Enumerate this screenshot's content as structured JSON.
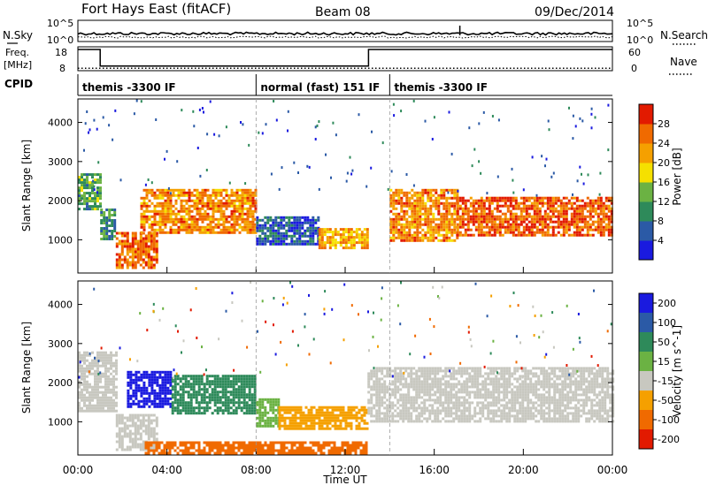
{
  "header": {
    "station": "Fort Hays East (fitACF)",
    "beam": "Beam 08",
    "date": "09/Dec/2014"
  },
  "nsky_panel": {
    "left_label": "N.Sky",
    "right_label": "N.Search",
    "left_ticks": [
      "10^5",
      "10^0"
    ],
    "right_ticks": [
      "10^5",
      "10^0"
    ]
  },
  "freq_panel": {
    "left_label_line1": "Freq.",
    "left_label_line2": "[MHz]",
    "right_label": "Nave",
    "left_ticks": [
      "18",
      "8"
    ],
    "right_ticks": [
      "60",
      "0"
    ],
    "freq_segments": [
      {
        "from_h": 0.0,
        "to_h": 1.0,
        "mhz": 18
      },
      {
        "from_h": 1.0,
        "to_h": 13.05,
        "mhz": 10.2
      },
      {
        "from_h": 13.05,
        "to_h": 24.0,
        "mhz": 18
      }
    ],
    "nave_level": 7
  },
  "cpid_panel": {
    "label": "CPID",
    "segments": [
      {
        "from_h": 0.0,
        "to_h": 8.0,
        "text": "themis -3300 IF"
      },
      {
        "from_h": 8.0,
        "to_h": 14.0,
        "text": "normal (fast) 151 IF"
      },
      {
        "from_h": 14.0,
        "to_h": 24.0,
        "text": "themis -3300 IF"
      }
    ]
  },
  "chart_data": [
    {
      "type": "heatmap",
      "name": "power",
      "ylabel": "Slant Range [km]",
      "ylim": [
        150,
        4600
      ],
      "y_ticks": [
        1000,
        2000,
        3000,
        4000
      ],
      "colorbar": {
        "label": "Power [dB]",
        "range": [
          0,
          32
        ],
        "ticks": [
          {
            "value": 4,
            "label": "4"
          },
          {
            "value": 8,
            "label": "8"
          },
          {
            "value": 12,
            "label": "12"
          },
          {
            "value": 16,
            "label": "16"
          },
          {
            "value": 20,
            "label": "20"
          },
          {
            "value": 24,
            "label": "24"
          },
          {
            "value": 28,
            "label": "28"
          }
        ],
        "colors": [
          "#1a1adf",
          "#2b5aa6",
          "#2e8a5a",
          "#6bb243",
          "#f5e000",
          "#f5a000",
          "#f06a00",
          "#e21a00"
        ]
      },
      "regions": [
        {
          "t0": 0.0,
          "t1": 1.0,
          "r0": 1800,
          "r1": 2700,
          "value": 12
        },
        {
          "t0": 1.0,
          "t1": 1.6,
          "r0": 1000,
          "r1": 1800,
          "value": 10
        },
        {
          "t0": 1.7,
          "t1": 3.5,
          "r0": 300,
          "r1": 1200,
          "value": 26
        },
        {
          "t0": 2.8,
          "t1": 8.0,
          "r0": 1200,
          "r1": 2300,
          "value": 24
        },
        {
          "t0": 8.0,
          "t1": 10.8,
          "r0": 900,
          "r1": 1600,
          "value": 6
        },
        {
          "t0": 10.8,
          "t1": 13.0,
          "r0": 800,
          "r1": 1300,
          "value": 22
        },
        {
          "t0": 14.0,
          "t1": 17.0,
          "r0": 1000,
          "r1": 2300,
          "value": 24
        },
        {
          "t0": 17.0,
          "t1": 24.0,
          "r0": 1100,
          "r1": 2100,
          "value": 27
        }
      ]
    },
    {
      "type": "heatmap",
      "name": "velocity",
      "ylabel": "Slant Range [km]",
      "xlabel": "Time UT",
      "ylim": [
        150,
        4600
      ],
      "y_ticks": [
        1000,
        2000,
        3000,
        4000
      ],
      "xlim": [
        0,
        24
      ],
      "x_ticks": [
        "00:00",
        "04:00",
        "08:00",
        "12:00",
        "16:00",
        "20:00",
        "00:00"
      ],
      "colorbar": {
        "label": "Velocity [m s^-1]",
        "bins": [
          "200",
          "100",
          "50",
          "15",
          "-15",
          "-50",
          "-100",
          "-200"
        ],
        "colors": [
          "#1a1adf",
          "#2b5aa6",
          "#2e8a5a",
          "#6bb243",
          "#c8c8c0",
          "#f5a000",
          "#f06a00",
          "#e21a00"
        ]
      },
      "regions": [
        {
          "t0": 0.0,
          "t1": 1.7,
          "r0": 1300,
          "r1": 2800,
          "value": "ground"
        },
        {
          "t0": 1.7,
          "t1": 3.5,
          "r0": 300,
          "r1": 1200,
          "value": "ground"
        },
        {
          "t0": 2.2,
          "t1": 4.2,
          "r0": 1400,
          "r1": 2300,
          "value": "200"
        },
        {
          "t0": 4.2,
          "t1": 8.0,
          "r0": 1200,
          "r1": 2200,
          "value": "50"
        },
        {
          "t0": 8.0,
          "t1": 9.0,
          "r0": 900,
          "r1": 1600,
          "value": "15"
        },
        {
          "t0": 9.0,
          "t1": 13.0,
          "r0": 800,
          "r1": 1400,
          "value": "-50"
        },
        {
          "t0": 3.0,
          "t1": 13.0,
          "r0": 200,
          "r1": 500,
          "value": "-100"
        },
        {
          "t0": 13.0,
          "t1": 24.0,
          "r0": 1000,
          "r1": 2400,
          "value": "ground"
        }
      ]
    }
  ]
}
